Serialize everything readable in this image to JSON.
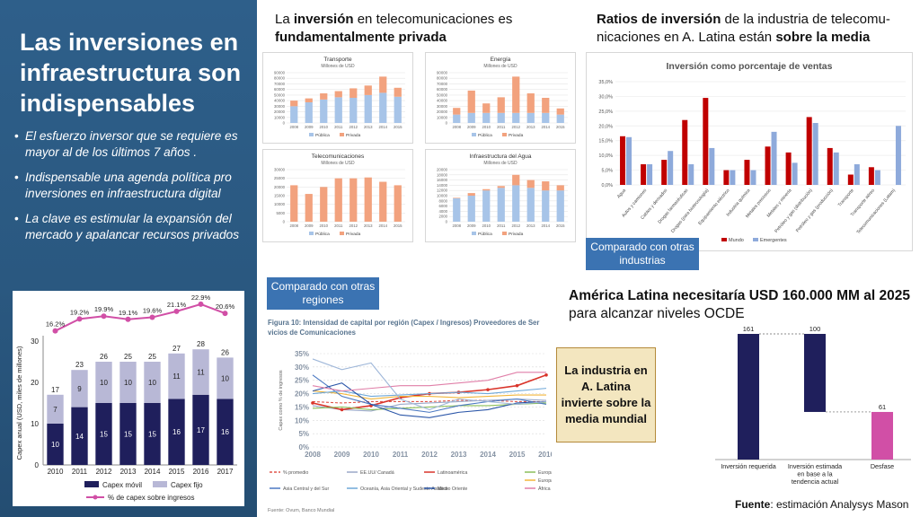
{
  "slide": {
    "title_parts": [
      "Las ",
      "inversiones en infraestructura",
      " son indispensables"
    ],
    "bullets": [
      "El esfuerzo inversor que se requiere es mayor al de los últimos 7 años .",
      "Indispensable una agenda política pro inversiones en infraestructura digital",
      "La clave es estimular la expansión del mercado y apalancar recursos privados"
    ]
  },
  "headings": {
    "top_middle": [
      "La ",
      "inversión",
      " en telecomunicaciones es ",
      "fundamentalmente privada"
    ],
    "top_right": [
      "Ratios de inversión",
      " de la industria de telecomu-nicaciones en A. Latina están ",
      "sobre la media"
    ],
    "bottom_right_bold": "América Latina necesitaría USD 160.000 MM al 2025",
    "bottom_right_normal": "para alcanzar niveles OCDE"
  },
  "badges": {
    "other_industries": "Comparado con otras industrias",
    "other_regions": "Comparado con otras regiones"
  },
  "callout": "La industria en A. Latina invierte sobre la media mundial",
  "source_note": {
    "bold": "Fuente",
    "text": ": estimación Analysys Mason"
  },
  "colors": {
    "panel": "#2a5880",
    "publica": "#a7c4e8",
    "privada": "#f2a27e",
    "mundo": "#c00000",
    "emergentes": "#8eaadb",
    "capex_movil": "#1f1f5c",
    "capex_fijo": "#b8b8d6",
    "pct_line": "#d14fa6"
  },
  "chart_data": [
    {
      "type": "bar",
      "title": "Capex anual (USD, miles de millones)",
      "ylabel": "Capex anual (USD, miles de millones)",
      "categories": [
        "2010",
        "2011",
        "2012",
        "2013",
        "2014",
        "2015",
        "2016",
        "2017"
      ],
      "ylim": [
        0,
        30
      ],
      "yticks": [
        "0",
        "10",
        "20",
        "30"
      ],
      "series": [
        {
          "name": "Capex móvil",
          "values": [
            10,
            14,
            15,
            15,
            15,
            16,
            17,
            16
          ]
        },
        {
          "name": "Capex fijo",
          "values": [
            7,
            9,
            10,
            10,
            10,
            11,
            11,
            10
          ]
        }
      ],
      "totals": [
        17,
        23,
        26,
        25,
        25,
        27,
        28,
        26
      ],
      "line": {
        "name": "% de capex sobre ingresos",
        "values": [
          16.2,
          19.2,
          19.9,
          19.1,
          19.6,
          21.1,
          22.9,
          20.6
        ],
        "labels": [
          "16.2%",
          "19.2%",
          "19.9%",
          "19.1%",
          "19.6%",
          "21.1%",
          "22.9%",
          "20.6%"
        ]
      },
      "legend": [
        "Capex móvil",
        "Capex fijo",
        "% de capex sobre ingresos"
      ]
    },
    {
      "type": "bar",
      "title": "Transporte",
      "subtitle": "Millones de USD",
      "categories": [
        "2008",
        "2009",
        "2010",
        "2011",
        "2012",
        "2013",
        "2014",
        "2015"
      ],
      "ylim": [
        0,
        90000
      ],
      "yticks": [
        "0",
        "10000",
        "20000",
        "30000",
        "40000",
        "50000",
        "60000",
        "70000",
        "80000",
        "90000"
      ],
      "series": [
        {
          "name": "Pública",
          "values": [
            30000,
            37000,
            42000,
            46000,
            45000,
            50000,
            54000,
            47000
          ]
        },
        {
          "name": "Privada",
          "values": [
            10000,
            7000,
            11000,
            11000,
            17000,
            17000,
            29000,
            16000
          ]
        }
      ]
    },
    {
      "type": "bar",
      "title": "Energía",
      "subtitle": "Millones de USD",
      "categories": [
        "2008",
        "2009",
        "2010",
        "2011",
        "2012",
        "2013",
        "2014",
        "2015"
      ],
      "ylim": [
        0,
        90000
      ],
      "yticks": [
        "0",
        "10000",
        "20000",
        "30000",
        "40000",
        "50000",
        "60000",
        "70000",
        "80000",
        "90000"
      ],
      "series": [
        {
          "name": "Pública",
          "values": [
            15000,
            18000,
            18000,
            18000,
            18000,
            18000,
            18000,
            15000
          ]
        },
        {
          "name": "Privada",
          "values": [
            12000,
            40000,
            17000,
            28000,
            65000,
            35000,
            27000,
            11000
          ]
        }
      ]
    },
    {
      "type": "bar",
      "title": "Telecomunicaciones",
      "subtitle": "Millones de USD",
      "categories": [
        "2008",
        "2009",
        "2010",
        "2011",
        "2012",
        "2013",
        "2014",
        "2015"
      ],
      "ylim": [
        0,
        30000
      ],
      "yticks": [
        "0",
        "5000",
        "10000",
        "15000",
        "20000",
        "25000",
        "30000"
      ],
      "series": [
        {
          "name": "Pública",
          "values": [
            0,
            0,
            0,
            0,
            0,
            0,
            0,
            0
          ]
        },
        {
          "name": "Privada",
          "values": [
            21000,
            16000,
            20000,
            25000,
            25000,
            25500,
            23000,
            21000
          ]
        }
      ]
    },
    {
      "type": "bar",
      "title": "Infraestructura del Agua",
      "subtitle": "Millones de USD",
      "categories": [
        "2008",
        "2009",
        "2010",
        "2011",
        "2012",
        "2013",
        "2014",
        "2015"
      ],
      "ylim": [
        0,
        20000
      ],
      "yticks": [
        "0",
        "2000",
        "4000",
        "6000",
        "8000",
        "10000",
        "12000",
        "14000",
        "16000",
        "18000",
        "20000"
      ],
      "series": [
        {
          "name": "Pública",
          "values": [
            9000,
            10000,
            12000,
            13000,
            14000,
            13000,
            12000,
            12000
          ]
        },
        {
          "name": "Privada",
          "values": [
            200,
            1000,
            500,
            700,
            4000,
            3000,
            3500,
            2000
          ]
        }
      ]
    },
    {
      "type": "bar",
      "title": "Inversión como porcentaje de ventas",
      "ylim": [
        0,
        35
      ],
      "yticks": [
        "0,0%",
        "5,0%",
        "10,0%",
        "15,0%",
        "20,0%",
        "25,0%",
        "30,0%",
        "35,0%"
      ],
      "categories": [
        "Agua",
        "Autos y camiones",
        "Cables y derivados",
        "Drogas farmacéuticas",
        "Drogas (para biotecnología)",
        "Equipamiento eléctrico",
        "Industria química",
        "Metales preciosos",
        "Metales y minería",
        "Petróleo y gas (distribución)",
        "Petróleo y gas (producción)",
        "Transporte",
        "Transporte aéreo",
        "Telecomunicaciones (Latam)"
      ],
      "series": [
        {
          "name": "Mundo",
          "values": [
            16.5,
            7,
            8.5,
            22,
            29.5,
            5,
            8.5,
            13,
            11,
            23,
            12.5,
            3.5,
            6,
            null
          ]
        },
        {
          "name": "Emergentes",
          "values": [
            16.2,
            7,
            11.5,
            7,
            12.5,
            5,
            5,
            18,
            7.5,
            21,
            11,
            7,
            5,
            20
          ]
        }
      ],
      "legend": [
        "Mundo",
        "Emergentes"
      ]
    },
    {
      "type": "line",
      "title": "Figura 10: Intensidad de capital por región (Capex / Ingresos) Proveedores de Servicios de Comunicaciones",
      "ylabel": "Capex como % de ingresos",
      "x": [
        "2008",
        "2009",
        "2010",
        "2011",
        "2012",
        "2013",
        "2014",
        "2015",
        "2016"
      ],
      "ylim": [
        0,
        35
      ],
      "yticks": [
        "0%",
        "5%",
        "10%",
        "15%",
        "20%",
        "25%",
        "30%",
        "35%"
      ],
      "series": [
        {
          "name": "% promedio",
          "values": [
            17,
            16.5,
            17,
            17,
            17,
            17.5,
            17.5,
            17,
            17
          ]
        },
        {
          "name": "EE.UU/ Canadá",
          "values": [
            15.5,
            14,
            13.5,
            16,
            16.5,
            17,
            17.5,
            18,
            17.5
          ]
        },
        {
          "name": "Latinoamérica",
          "values": [
            16.5,
            14,
            15.5,
            18.5,
            20,
            20.5,
            21.5,
            23,
            27
          ]
        },
        {
          "name": "Europa Occidental",
          "values": [
            14.5,
            15,
            14,
            14.5,
            15,
            15.5,
            15.5,
            16,
            16.5
          ]
        },
        {
          "name": "Europa del Este",
          "values": [
            21,
            20,
            18,
            19,
            19,
            18.5,
            19,
            19.5,
            19.5
          ]
        },
        {
          "name": "Asia Central y del Sur",
          "values": [
            27,
            19,
            16,
            14.5,
            13,
            15.5,
            17,
            18,
            16
          ]
        },
        {
          "name": "Oceanía, Asia Oriental y Sudeste Asiático",
          "values": [
            20,
            21,
            19,
            19.5,
            20,
            20.5,
            20,
            21,
            22
          ]
        },
        {
          "name": "Medio Oriente",
          "values": [
            21,
            24,
            16,
            12,
            11,
            13,
            14,
            16.5,
            17
          ]
        },
        {
          "name": "África",
          "values": [
            23,
            21,
            22,
            23,
            23,
            24,
            25,
            28,
            28
          ]
        },
        {
          "name": "",
          "values": [
            33,
            29,
            31.5,
            18,
            14,
            18,
            17,
            16,
            17
          ]
        }
      ],
      "source": "Fuente: Ovum, Banco Mundial"
    },
    {
      "type": "bar",
      "categories": [
        "Inversión requerida",
        "Inversión estimada en base a la tendencia actual",
        "Desfase"
      ],
      "values": [
        161,
        100,
        61
      ],
      "labels": [
        "161",
        "100",
        "61"
      ],
      "waterfall_base": [
        0,
        61,
        0
      ]
    }
  ]
}
